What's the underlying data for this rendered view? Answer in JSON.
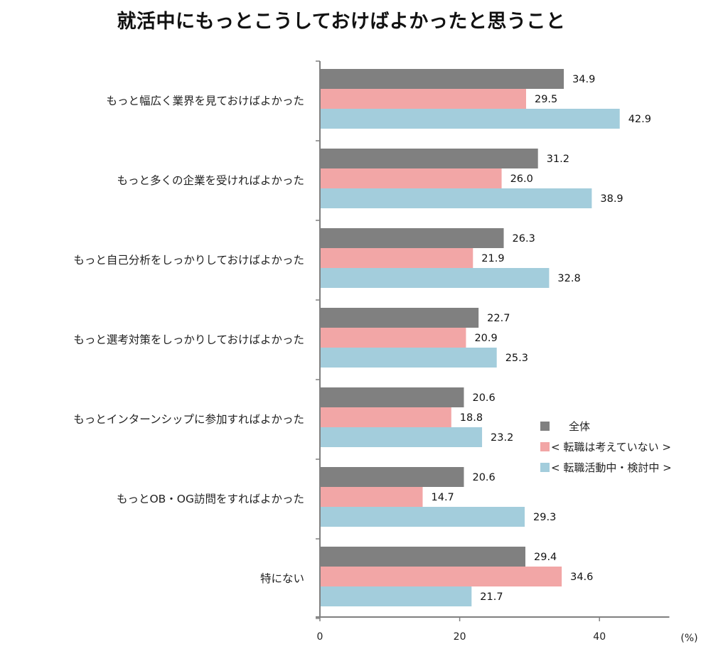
{
  "chart_data": {
    "type": "bar",
    "orientation": "horizontal",
    "title": "就活中にもっとこうしておけばよかったと思うこと",
    "categories": [
      "もっと幅広く業界を見ておけばよかった",
      "もっと多くの企業を受ければよかった",
      "もっと自己分析をしっかりしておけばよかった",
      "もっと選考対策をしっかりしておけばよかった",
      "もっとインターンシップに参加すればよかった",
      "もっとOB・OG訪問をすればよかった",
      "特にない"
    ],
    "series": [
      {
        "name": "全体",
        "legend_label": "全体",
        "color": "#808080",
        "values": [
          34.9,
          31.2,
          26.3,
          22.7,
          20.6,
          20.6,
          29.4
        ]
      },
      {
        "name": "転職は考えていない",
        "legend_label": "< 転職は考えていない >",
        "color": "#f2a6a6",
        "values": [
          29.5,
          26.0,
          21.9,
          20.9,
          18.8,
          14.7,
          34.6
        ]
      },
      {
        "name": "転職活動中・検討中",
        "legend_label": "< 転職活動中・検討中 >",
        "color": "#a3cddc",
        "values": [
          42.9,
          38.9,
          32.8,
          25.3,
          23.2,
          29.3,
          21.7
        ]
      }
    ],
    "xlabel": "(%)",
    "ylabel": "",
    "xlim": [
      0,
      50
    ],
    "xticks": [
      0,
      20,
      40
    ],
    "value_format": "one-decimal",
    "grid": false,
    "legend_position": "right-middle"
  }
}
